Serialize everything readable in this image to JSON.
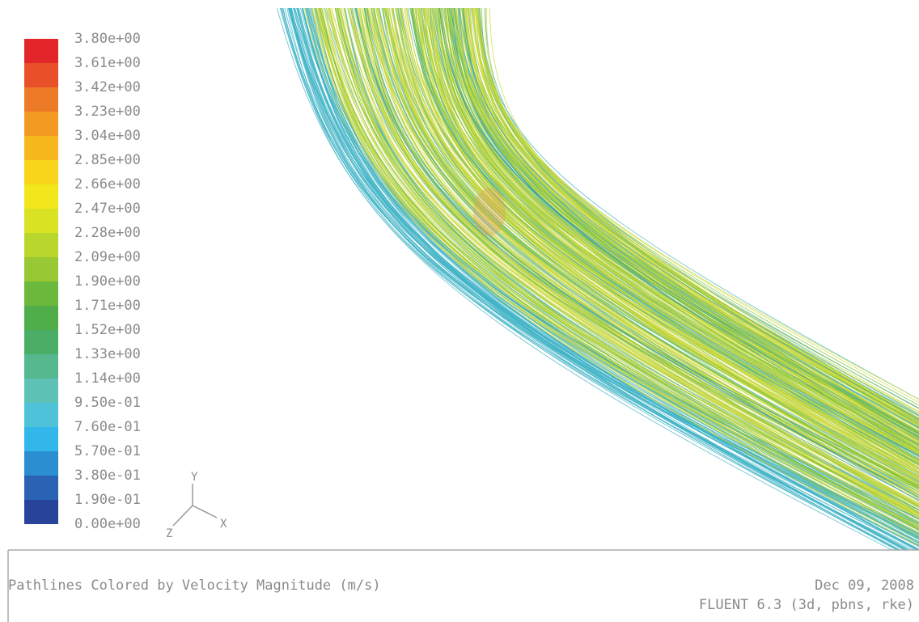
{
  "legend": {
    "labels": [
      "3.80e+00",
      "3.61e+00",
      "3.42e+00",
      "3.23e+00",
      "3.04e+00",
      "2.85e+00",
      "2.66e+00",
      "2.47e+00",
      "2.28e+00",
      "2.09e+00",
      "1.90e+00",
      "1.71e+00",
      "1.52e+00",
      "1.33e+00",
      "1.14e+00",
      "9.50e-01",
      "7.60e-01",
      "5.70e-01",
      "3.80e-01",
      "1.90e-01",
      "0.00e+00"
    ]
  },
  "triad": {
    "y": "Y",
    "x": "X",
    "z": "Z"
  },
  "footer": {
    "title": "Pathlines Colored by Velocity Magnitude (m/s)",
    "date": "Dec 09, 2008",
    "solver": "FLUENT 6.3 (3d, pbns, rke)"
  }
}
